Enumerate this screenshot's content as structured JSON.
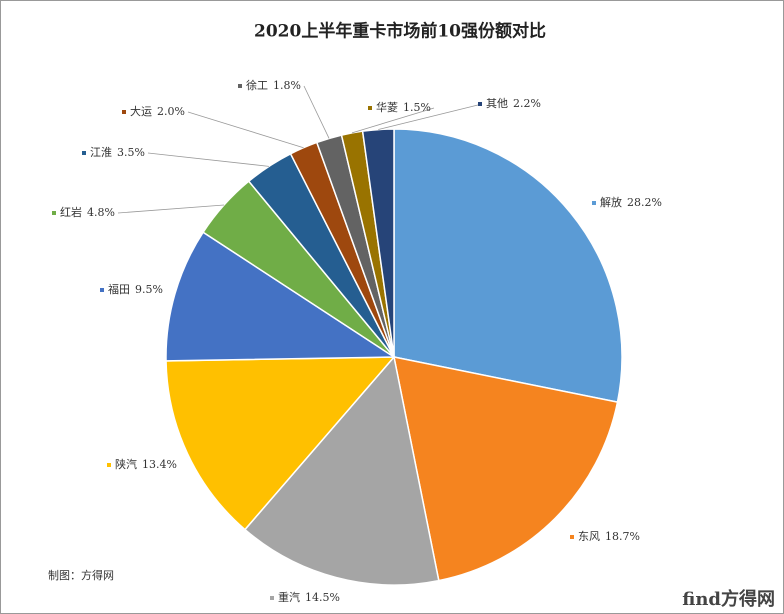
{
  "chart_data": {
    "type": "pie",
    "title": "2020上半年重卡市场前10强份额对比",
    "categories": [
      "解放",
      "东风",
      "重汽",
      "陕汽",
      "福田",
      "红岩",
      "江淮",
      "大运",
      "徐工",
      "华菱",
      "其他"
    ],
    "values": [
      28.2,
      18.7,
      14.5,
      13.4,
      9.5,
      4.8,
      3.5,
      2.0,
      1.8,
      1.5,
      2.2
    ],
    "value_labels": [
      "28.2%",
      "18.7%",
      "14.5%",
      "13.4%",
      "9.5%",
      "4.8%",
      "3.5%",
      "2.0%",
      "1.8%",
      "1.5%",
      "2.2%"
    ],
    "colors": [
      "#5b9bd5",
      "#f5841f",
      "#a5a5a5",
      "#ffc000",
      "#4472c4",
      "#70ad47",
      "#255e91",
      "#9e480e",
      "#636363",
      "#997300",
      "#264478"
    ],
    "source": "制图：方得网",
    "logo": "find方得网"
  }
}
